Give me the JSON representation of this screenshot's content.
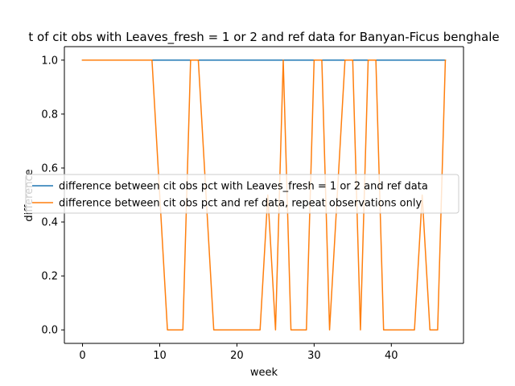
{
  "chart_data": {
    "type": "line",
    "title": "t of cit obs with Leaves_fresh = 1 or 2 and ref data for Banyan-Ficus benghale",
    "xlabel": "week",
    "ylabel": "difference",
    "xlim": [
      -2.35,
      49.35
    ],
    "ylim": [
      -0.05,
      1.05
    ],
    "xticks": [
      0,
      10,
      20,
      30,
      40
    ],
    "xtick_labels": [
      "0",
      "10",
      "20",
      "30",
      "40"
    ],
    "yticks": [
      0.0,
      0.2,
      0.4,
      0.6,
      0.8,
      1.0
    ],
    "ytick_labels": [
      "0.0",
      "0.2",
      "0.4",
      "0.6",
      "0.8",
      "1.0"
    ],
    "grid": false,
    "legend_position": "center-left",
    "series": [
      {
        "name": "difference between cit obs pct with Leaves_fresh = 1 or 2 and ref data",
        "color": "#1f77b4",
        "x": [
          0,
          47
        ],
        "y": [
          1,
          1
        ]
      },
      {
        "name": "difference between cit obs pct and ref data, repeat observations only",
        "color": "#ff7f0e",
        "x": [
          0,
          1,
          2,
          3,
          4,
          5,
          6,
          7,
          8,
          9,
          10,
          11,
          12,
          13,
          14,
          15,
          16,
          17,
          18,
          19,
          20,
          21,
          22,
          23,
          24,
          25,
          26,
          27,
          28,
          29,
          30,
          31,
          32,
          33,
          34,
          35,
          36,
          37,
          38,
          39,
          40,
          41,
          42,
          43,
          44,
          45,
          46,
          47
        ],
        "y": [
          1,
          1,
          1,
          1,
          1,
          1,
          1,
          1,
          1,
          1,
          0.5,
          0,
          0,
          0,
          1,
          1,
          0.5,
          0,
          0,
          0,
          0,
          0,
          0,
          0,
          0.5,
          0,
          1,
          0,
          0,
          0,
          1,
          1,
          0,
          0.5,
          1,
          1,
          0,
          1,
          1,
          0,
          0,
          0,
          0,
          0,
          0.5,
          0,
          0,
          1
        ]
      }
    ]
  }
}
